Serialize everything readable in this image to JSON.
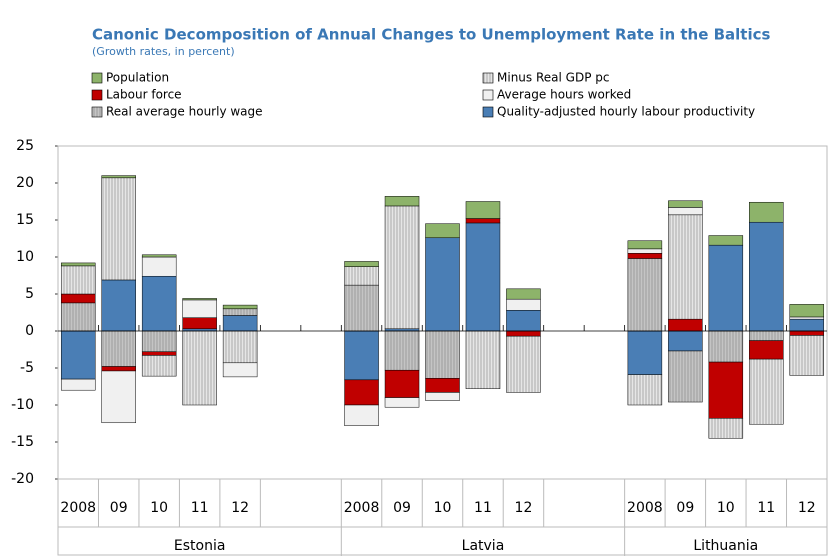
{
  "chart_data": {
    "type": "bar",
    "stacked": true,
    "title": "Canonic Decomposition of Annual Changes to Unemployment Rate in the Baltics",
    "subtitle": "(Growth rates, in percent)",
    "groups": [
      {
        "name": "Estonia",
        "categories": [
          "2008",
          "09",
          "10",
          "11",
          "12"
        ]
      },
      {
        "name": "Latvia",
        "categories": [
          "2008",
          "09",
          "10",
          "11",
          "12"
        ]
      },
      {
        "name": "Lithuania",
        "categories": [
          "2008",
          "09",
          "10",
          "11",
          "12"
        ]
      }
    ],
    "series": [
      {
        "name": "Population",
        "color": "#8db36a",
        "values": [
          0.4,
          0.3,
          0.3,
          0.2,
          0.5,
          0.7,
          1.3,
          1.9,
          2.3,
          1.4,
          1.1,
          0.9,
          1.3,
          2.7,
          1.7
        ]
      },
      {
        "name": "Labour force",
        "color": "#c00000",
        "values": [
          1.2,
          -0.6,
          -0.5,
          1.5,
          0,
          -3.4,
          -3.7,
          -1.9,
          0.6,
          -0.7,
          0.7,
          1.6,
          -7.6,
          -2.5,
          -0.6
        ]
      },
      {
        "name": "Real average hourly wage",
        "color": "#c4c4c4",
        "hatch": true,
        "values": [
          3.8,
          -4.8,
          -2.8,
          0,
          0.9,
          6.2,
          -5.3,
          -6.4,
          0,
          0,
          9.8,
          -6.9,
          -4.2,
          -1.3,
          0
        ]
      },
      {
        "name": "Minus Real GDP pc",
        "color": "#e6e6e6",
        "hatch": true,
        "values": [
          3.8,
          13.8,
          -2.8,
          -10,
          -4.3,
          2.5,
          16.6,
          0,
          -7.8,
          -7.6,
          -4.1,
          14.1,
          -2.7,
          -8.8,
          -5.4
        ]
      },
      {
        "name": "Average hours worked",
        "color": "#f0f0f0",
        "values": [
          -1.5,
          -7.0,
          2.6,
          2.4,
          -1.9,
          -2.8,
          -1.3,
          -1.1,
          0,
          1.5,
          0.6,
          1.0,
          0,
          0,
          0.3
        ]
      },
      {
        "name": "Quality-adjusted hourly labour productivity",
        "color": "#4a7eb5",
        "values": [
          -6.5,
          6.9,
          7.4,
          0.3,
          2.1,
          -6.6,
          0.3,
          12.6,
          14.6,
          2.8,
          -5.9,
          -2.7,
          11.6,
          14.7,
          1.6
        ]
      }
    ],
    "ylim": [
      -20,
      25
    ],
    "yticks": [
      25,
      20,
      15,
      10,
      5,
      0,
      -5,
      -10,
      -15,
      -20
    ]
  }
}
